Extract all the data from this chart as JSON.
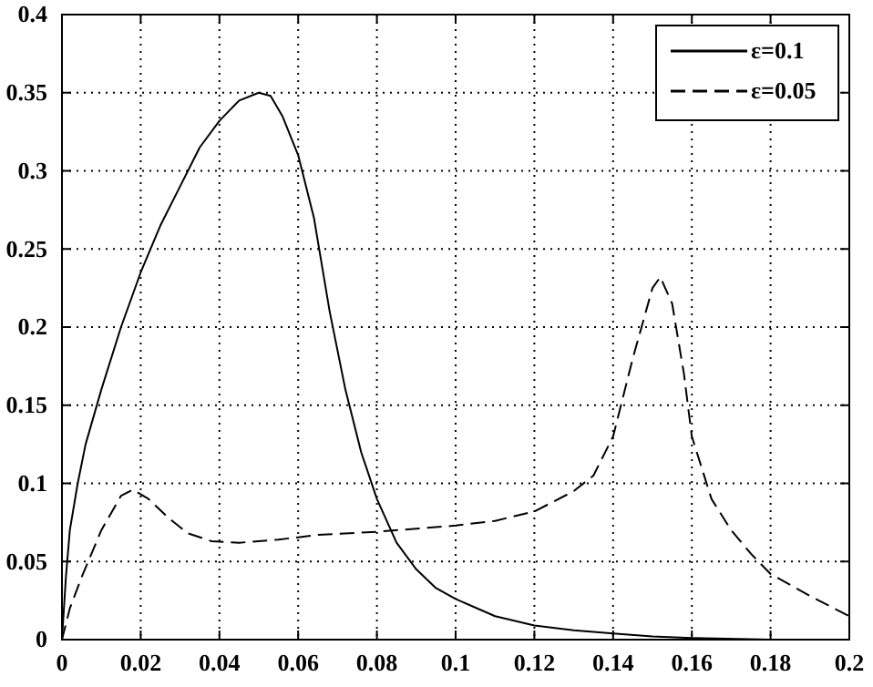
{
  "chart_data": {
    "type": "line",
    "xlim": [
      0,
      0.2
    ],
    "ylim": [
      0,
      0.4
    ],
    "xticks": [
      0,
      0.02,
      0.04,
      0.06,
      0.08,
      0.1,
      0.12,
      0.14,
      0.16,
      0.18,
      0.2
    ],
    "yticks": [
      0,
      0.05,
      0.1,
      0.15,
      0.2,
      0.25,
      0.3,
      0.35,
      0.4
    ],
    "grid": true,
    "legend": "top right",
    "series": [
      {
        "name": "ε=0.1",
        "color": "#000000",
        "line_style": "solid",
        "x": [
          0,
          0.001,
          0.002,
          0.004,
          0.006,
          0.01,
          0.015,
          0.02,
          0.025,
          0.03,
          0.035,
          0.04,
          0.045,
          0.05,
          0.053,
          0.056,
          0.06,
          0.064,
          0.068,
          0.072,
          0.076,
          0.08,
          0.085,
          0.09,
          0.095,
          0.1,
          0.11,
          0.12,
          0.13,
          0.14,
          0.15,
          0.16,
          0.18,
          0.2
        ],
        "values": [
          0,
          0.04,
          0.07,
          0.1,
          0.125,
          0.16,
          0.2,
          0.235,
          0.265,
          0.29,
          0.315,
          0.332,
          0.345,
          0.35,
          0.348,
          0.335,
          0.31,
          0.27,
          0.21,
          0.16,
          0.12,
          0.09,
          0.062,
          0.045,
          0.033,
          0.026,
          0.015,
          0.009,
          0.006,
          0.004,
          0.002,
          0.001,
          0,
          0
        ]
      },
      {
        "name": "ε=0.05",
        "color": "#000000",
        "line_style": "dashed",
        "x": [
          0,
          0.002,
          0.005,
          0.01,
          0.015,
          0.018,
          0.022,
          0.027,
          0.032,
          0.038,
          0.045,
          0.055,
          0.065,
          0.08,
          0.09,
          0.1,
          0.11,
          0.12,
          0.13,
          0.135,
          0.14,
          0.145,
          0.15,
          0.152,
          0.155,
          0.158,
          0.16,
          0.165,
          0.17,
          0.175,
          0.18,
          0.19,
          0.2
        ],
        "values": [
          0,
          0.02,
          0.04,
          0.07,
          0.092,
          0.096,
          0.09,
          0.078,
          0.068,
          0.063,
          0.062,
          0.064,
          0.067,
          0.069,
          0.071,
          0.073,
          0.076,
          0.082,
          0.095,
          0.105,
          0.13,
          0.18,
          0.225,
          0.232,
          0.215,
          0.17,
          0.13,
          0.09,
          0.07,
          0.055,
          0.042,
          0.028,
          0.015
        ]
      }
    ]
  }
}
